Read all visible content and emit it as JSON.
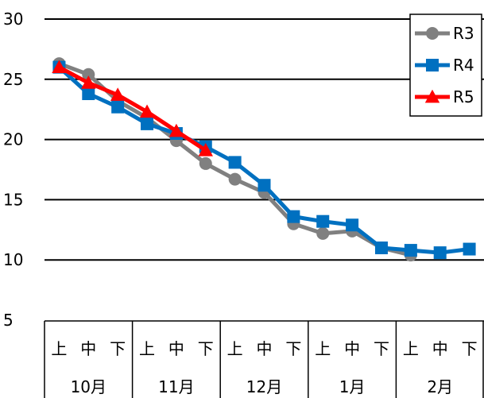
{
  "chart_data": {
    "type": "line",
    "title": "",
    "xlabel": "",
    "ylabel": "",
    "ylim": [
      5,
      30
    ],
    "yticks": [
      5,
      10,
      15,
      20,
      25,
      30
    ],
    "gridlines_at": [
      10,
      15,
      20,
      25,
      30
    ],
    "categories": [
      "上",
      "中",
      "下",
      "上",
      "中",
      "下",
      "上",
      "中",
      "下",
      "上",
      "中",
      "下",
      "上",
      "中",
      "下"
    ],
    "groups": [
      "10月",
      "11月",
      "12月",
      "1月",
      "2月"
    ],
    "legend_position": "top-right",
    "series": [
      {
        "name": "R3",
        "color": "#808080",
        "marker": "circle",
        "values": [
          26.3,
          25.4,
          23.2,
          21.8,
          19.9,
          18.0,
          16.7,
          15.6,
          13.0,
          12.2,
          12.4,
          11.0,
          10.4,
          null,
          null
        ]
      },
      {
        "name": "R4",
        "color": "#0070C0",
        "marker": "square",
        "values": [
          26.0,
          23.8,
          22.7,
          21.3,
          20.5,
          19.4,
          18.1,
          16.2,
          13.6,
          13.2,
          12.9,
          11.0,
          10.8,
          10.6,
          10.9
        ]
      },
      {
        "name": "R5",
        "color": "#FF0000",
        "marker": "triangle",
        "values": [
          26.0,
          24.7,
          23.7,
          22.3,
          20.7,
          19.1,
          null,
          null,
          null,
          null,
          null,
          null,
          null,
          null,
          null
        ]
      }
    ]
  }
}
